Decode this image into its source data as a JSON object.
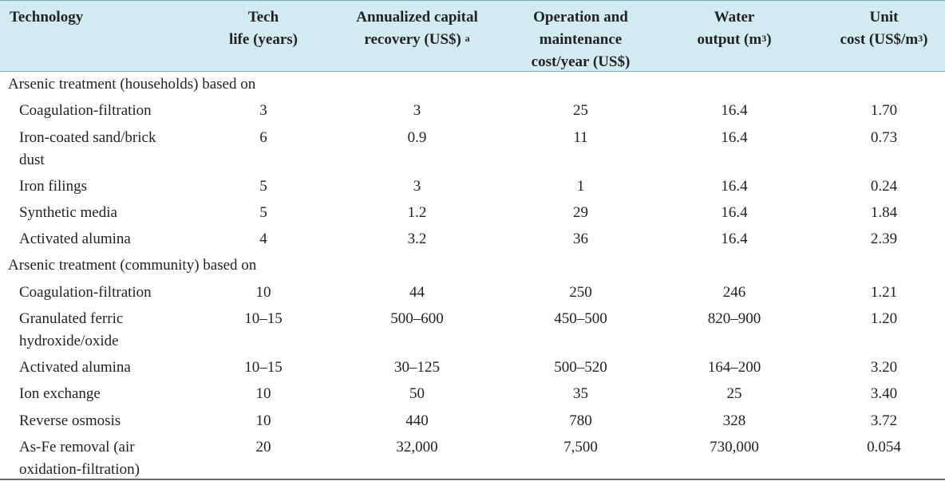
{
  "header": {
    "technology": "Technology",
    "tech_life": [
      "Tech",
      "life (years)"
    ],
    "capital": [
      "Annualized capital",
      "recovery (US$)"
    ],
    "capital_note": "a",
    "om": [
      "Operation and",
      "maintenance",
      "cost/year (US$)"
    ],
    "water": [
      "Water",
      "output (m"
    ],
    "water_sup": "3",
    "water_end": ")",
    "unit": [
      "Unit",
      "cost (US$/m"
    ],
    "unit_sup": "3",
    "unit_end": ")"
  },
  "groups": [
    {
      "label": "Arsenic treatment (households) based on",
      "rows": [
        {
          "name": [
            "Coagulation-filtration"
          ],
          "life": "3",
          "capital": "3",
          "om": "25",
          "water": "16.4",
          "unit": "1.70"
        },
        {
          "name": [
            "Iron-coated sand/brick",
            "dust"
          ],
          "life": "6",
          "capital": "0.9",
          "om": "11",
          "water": "16.4",
          "unit": "0.73"
        },
        {
          "name": [
            "Iron filings"
          ],
          "life": "5",
          "capital": "3",
          "om": "1",
          "water": "16.4",
          "unit": "0.24"
        },
        {
          "name": [
            "Synthetic media"
          ],
          "life": "5",
          "capital": "1.2",
          "om": "29",
          "water": "16.4",
          "unit": "1.84"
        },
        {
          "name": [
            "Activated alumina"
          ],
          "life": "4",
          "capital": "3.2",
          "om": "36",
          "water": "16.4",
          "unit": "2.39"
        }
      ]
    },
    {
      "label": "Arsenic treatment (community) based on",
      "rows": [
        {
          "name": [
            "Coagulation-filtration"
          ],
          "life": "10",
          "capital": "44",
          "om": "250",
          "water": "246",
          "unit": "1.21"
        },
        {
          "name": [
            "Granulated ferric",
            "hydroxide/oxide"
          ],
          "life": "10–15",
          "capital": "500–600",
          "om": "450–500",
          "water": "820–900",
          "unit": "1.20"
        },
        {
          "name": [
            "Activated alumina"
          ],
          "life": "10–15",
          "capital": "30–125",
          "om": "500–520",
          "water": "164–200",
          "unit": "3.20"
        },
        {
          "name": [
            "Ion exchange"
          ],
          "life": "10",
          "capital": "50",
          "om": "35",
          "water": "25",
          "unit": "3.40"
        },
        {
          "name": [
            "Reverse osmosis"
          ],
          "life": "10",
          "capital": "440",
          "om": "780",
          "water": "328",
          "unit": "3.72"
        },
        {
          "name": [
            "As-Fe removal (air",
            "oxidation-filtration)"
          ],
          "life": "20",
          "capital": "32,000",
          "om": "7,500",
          "water": "730,000",
          "unit": "0.054"
        }
      ]
    }
  ]
}
